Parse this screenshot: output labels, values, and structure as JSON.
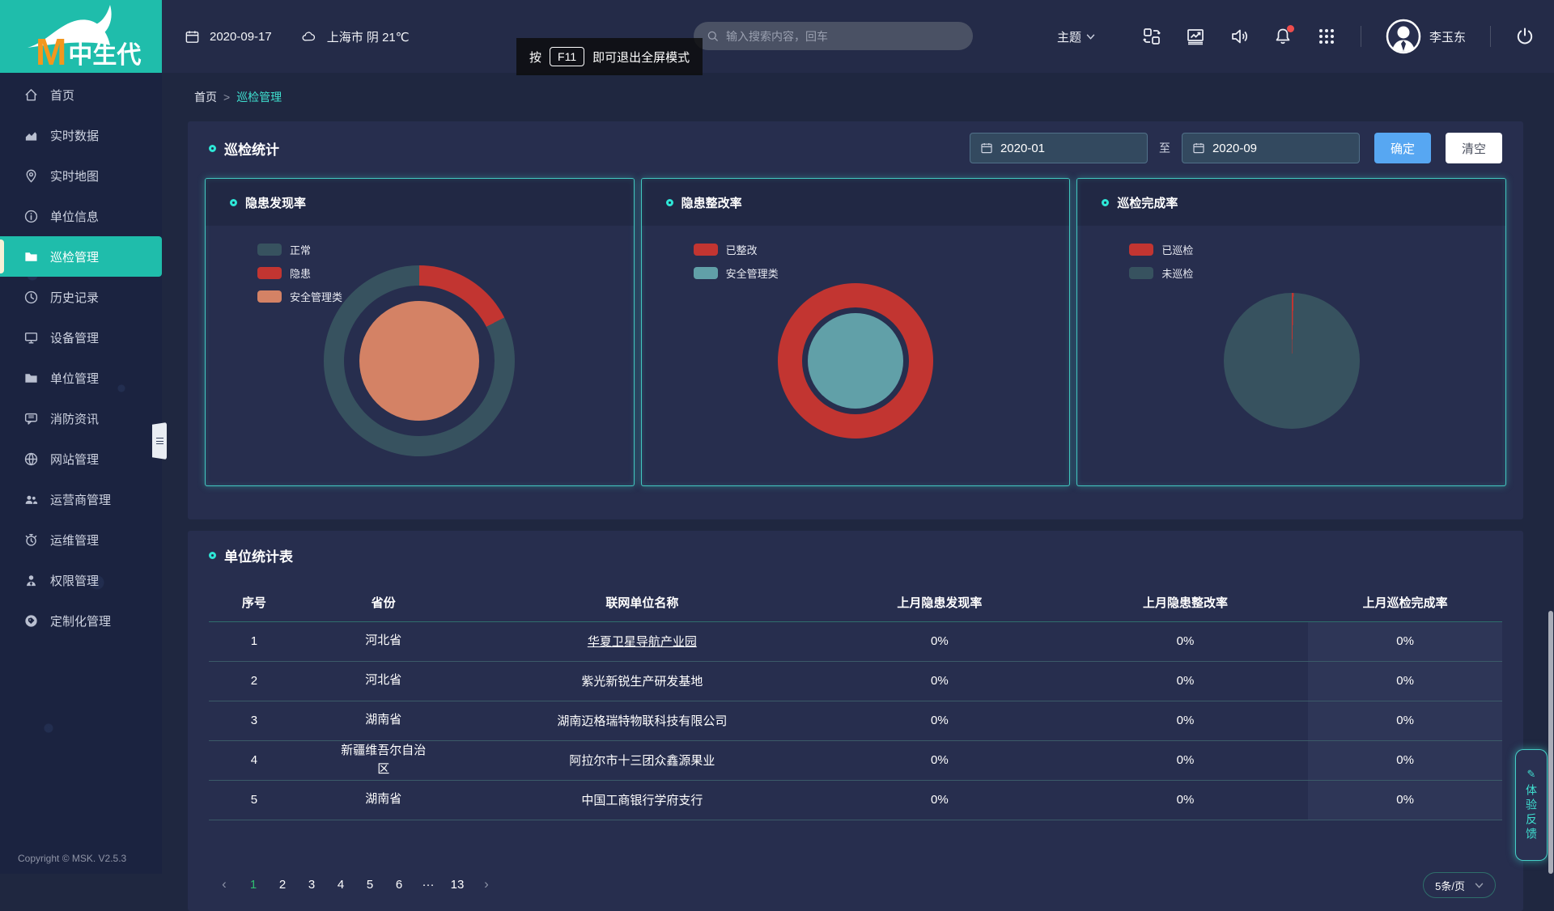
{
  "app": {
    "logo_m": "M",
    "logo_text": "中生代",
    "copyright": "Copyright © MSK. V2.5.3"
  },
  "topbar": {
    "date": "2020-09-17",
    "weather": "上海市 阴 21℃",
    "search_placeholder": "输入搜索内容，回车",
    "tooltip": {
      "prefix": "按",
      "key": "F11",
      "suffix": "即可退出全屏模式"
    },
    "theme_label": "主题",
    "username": "李玉东"
  },
  "sidebar": {
    "items": [
      {
        "id": "home",
        "icon": "home",
        "label": "首页",
        "active": false
      },
      {
        "id": "realtime-data",
        "icon": "bar-chart",
        "label": "实时数据",
        "active": false
      },
      {
        "id": "realtime-map",
        "icon": "map-pin",
        "label": "实时地图",
        "active": false
      },
      {
        "id": "unit-info",
        "icon": "info-circle",
        "label": "单位信息",
        "active": false
      },
      {
        "id": "inspection-management",
        "icon": "folder",
        "label": "巡检管理",
        "active": true
      },
      {
        "id": "history",
        "icon": "clock",
        "label": "历史记录",
        "active": false
      },
      {
        "id": "device-management",
        "icon": "monitor",
        "label": "设备管理",
        "active": false
      },
      {
        "id": "unit-management",
        "icon": "folder",
        "label": "单位管理",
        "active": false
      },
      {
        "id": "fire-news",
        "icon": "chat",
        "label": "消防资讯",
        "active": false
      },
      {
        "id": "website-management",
        "icon": "globe",
        "label": "网站管理",
        "active": false
      },
      {
        "id": "operator-management",
        "icon": "users",
        "label": "运营商管理",
        "active": false
      },
      {
        "id": "maintenance-management",
        "icon": "stopwatch",
        "label": "运维管理",
        "active": false
      },
      {
        "id": "permission-management",
        "icon": "user-badge",
        "label": "权限管理",
        "active": false
      },
      {
        "id": "customization-management",
        "icon": "tag",
        "label": "定制化管理",
        "active": false
      }
    ]
  },
  "breadcrumb": {
    "home": "首页",
    "separator": ">",
    "current": "巡检管理"
  },
  "stats_panel": {
    "title": "巡检统计",
    "date_from": "2020-01",
    "to_label": "至",
    "date_to": "2020-09",
    "confirm_label": "确定",
    "clear_label": "清空"
  },
  "chart_data": [
    {
      "type": "pie",
      "title": "隐患发现率",
      "legend": [
        {
          "label": "正常",
          "color": "#37525f"
        },
        {
          "label": "隐患",
          "color": "#c23531"
        },
        {
          "label": "安全管理类",
          "color": "#d48265"
        }
      ],
      "rings": [
        {
          "diameter": 236,
          "thickness": 25,
          "segments": [
            {
              "name": "隐患",
              "color": "#c23531",
              "pct": 17.5
            },
            {
              "name": "正常",
              "color": "#37525f",
              "pct": 82.5
            }
          ]
        },
        {
          "diameter": 148,
          "thickness": 74,
          "segments": [
            {
              "name": "安全管理类",
              "color": "#d48265",
              "pct": 100
            }
          ]
        }
      ]
    },
    {
      "type": "pie",
      "title": "隐患整改率",
      "legend": [
        {
          "label": "已整改",
          "color": "#c23531"
        },
        {
          "label": "安全管理类",
          "color": "#61a0a8"
        }
      ],
      "rings": [
        {
          "diameter": 192,
          "thickness": 30,
          "segments": [
            {
              "name": "已整改",
              "color": "#c23531",
              "pct": 100
            }
          ]
        },
        {
          "diameter": 118,
          "thickness": 59,
          "segments": [
            {
              "name": "安全管理类",
              "color": "#61a0a8",
              "pct": 100
            }
          ]
        }
      ]
    },
    {
      "type": "pie",
      "title": "巡检完成率",
      "legend": [
        {
          "label": "已巡检",
          "color": "#c23531"
        },
        {
          "label": "未巡检",
          "color": "#37525f"
        }
      ],
      "rings": [
        {
          "diameter": 168,
          "thickness": 84,
          "segments": [
            {
              "name": "已巡检",
              "color": "#c23531",
              "pct": 0.45
            },
            {
              "name": "未巡检",
              "color": "#37525f",
              "pct": 99.55
            }
          ]
        }
      ]
    }
  ],
  "table_panel": {
    "title": "单位统计表",
    "columns": [
      "序号",
      "省份",
      "联网单位名称",
      "上月隐患发现率",
      "上月隐患整改率",
      "上月巡检完成率"
    ],
    "rows": [
      {
        "no": "1",
        "province": "河北省",
        "name": "华夏卫星导航产业园",
        "discovery": "0%",
        "rectification": "0%",
        "completion": "0%"
      },
      {
        "no": "2",
        "province": "河北省",
        "name": "紫光新锐生产研发基地",
        "discovery": "0%",
        "rectification": "0%",
        "completion": "0%"
      },
      {
        "no": "3",
        "province": "湖南省",
        "name": "湖南迈格瑞特物联科技有限公司",
        "discovery": "0%",
        "rectification": "0%",
        "completion": "0%"
      },
      {
        "no": "4",
        "province": "新疆维吾尔自治区",
        "name": "阿拉尔市十三团众鑫源果业",
        "discovery": "0%",
        "rectification": "0%",
        "completion": "0%"
      },
      {
        "no": "5",
        "province": "湖南省",
        "name": "中国工商银行学府支行",
        "discovery": "0%",
        "rectification": "0%",
        "completion": "0%"
      }
    ]
  },
  "pagination": {
    "prev": "‹",
    "pages": [
      "1",
      "2",
      "3",
      "4",
      "5",
      "6",
      "···",
      "13"
    ],
    "active": "1",
    "next": "›",
    "page_size": "5条/页"
  },
  "feedback": {
    "label": "体验反馈",
    "pencil": "✎"
  }
}
